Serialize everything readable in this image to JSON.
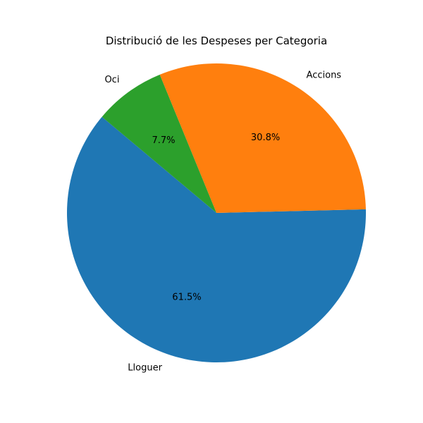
{
  "chart_data": {
    "type": "pie",
    "title": "Distribució de les Despeses per Categoria",
    "categories": [
      "Lloguer",
      "Accions",
      "Oci"
    ],
    "values": [
      61.5,
      30.8,
      7.7
    ],
    "percent_labels": [
      "61.5%",
      "30.8%",
      "7.7%"
    ],
    "colors": [
      "#1f77b4",
      "#ff7f0e",
      "#2ca02c"
    ],
    "start_angle_deg": 140,
    "direction": "counterclockwise"
  }
}
